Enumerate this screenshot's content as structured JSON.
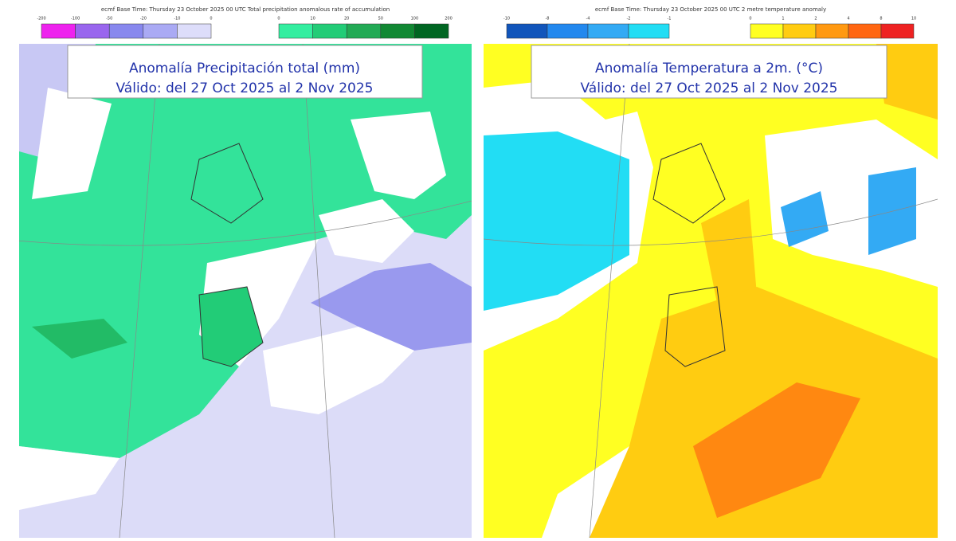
{
  "panels": [
    {
      "header": "ecmf  Base Time: Thursday 23 October 2025 00 UTC Total precipitation anomalous rate of accumulation",
      "title": "Anomalía Precipitación total (mm)",
      "subtitle": "Válido: del 27 Oct 2025 al 2 Nov 2025",
      "scales": [
        {
          "colors": [
            "#ee22ee",
            "#9966ee",
            "#8888ee",
            "#aaaaf4",
            "#ddddfa"
          ],
          "labels": [
            "-200",
            "-100",
            "-50",
            "-20",
            "-10",
            "0"
          ]
        },
        {
          "colors": [
            "#33eea0",
            "#22cc77",
            "#22aa55",
            "#118833",
            "#006622"
          ],
          "labels": [
            "0",
            "10",
            "20",
            "50",
            "100",
            "200"
          ]
        }
      ]
    },
    {
      "header": "ecmf  Base Time: Thursday 23 October 2025 00 UTC 2 metre temperature anomaly",
      "title": "Anomalía Temperatura a 2m. (°C)",
      "subtitle": "Válido: del 27 Oct 2025 al 2 Nov 2025",
      "scales": [
        {
          "colors": [
            "#1155bb",
            "#2288ee",
            "#33aaf4",
            "#22ddf4"
          ],
          "labels": [
            "-10",
            "-8",
            "-4",
            "-2",
            "-1"
          ]
        },
        {
          "colors": [
            "#ffff22",
            "#ffcc11",
            "#ff9911",
            "#ff6611",
            "#ee2222"
          ],
          "labels": [
            "0",
            "1",
            "2",
            "4",
            "8",
            "10"
          ]
        }
      ]
    }
  ]
}
